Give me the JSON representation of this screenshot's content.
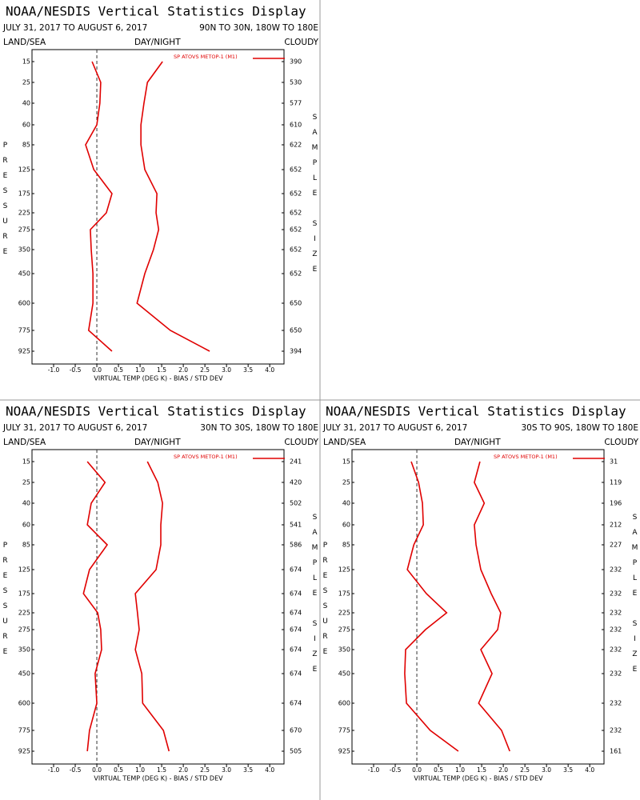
{
  "chart_data": [
    {
      "type": "line",
      "title": "NOAA/NESDIS Vertical Statistics Display",
      "subtitle": "JULY 31, 2017 TO AUGUST 6, 2017",
      "region": "90N TO 30N, 180W TO 180E",
      "header_left": "LAND/SEA",
      "header_center": "DAY/NIGHT",
      "header_right": "CLOUDY",
      "y_label": "PRESSURE",
      "y2_label": "SAMPLE SIZE",
      "x_label": "VIRTUAL TEMP (DEG K) - BIAS / STD DEV",
      "categories": [
        "15",
        "25",
        "40",
        "60",
        "85",
        "125",
        "175",
        "225",
        "275",
        "350",
        "450",
        "600",
        "775",
        "925"
      ],
      "sample_size": [
        390,
        530,
        577,
        610,
        622,
        652,
        652,
        652,
        652,
        652,
        652,
        650,
        650,
        394
      ],
      "series": [
        {
          "name": "SP ATOVS METOP-1 (M1)",
          "color": "#e00000",
          "values": [
            -0.11,
            0.09,
            0.07,
            0.0,
            -0.26,
            -0.07,
            0.35,
            0.22,
            -0.15,
            -0.13,
            -0.09,
            -0.09,
            -0.19,
            0.35
          ],
          "std_dev": [
            1.52,
            1.17,
            1.09,
            1.02,
            1.02,
            1.11,
            1.39,
            1.37,
            1.43,
            1.31,
            1.11,
            0.93,
            1.7,
            2.61
          ]
        }
      ],
      "xlim": [
        -1.5,
        4.33
      ],
      "xticks": [
        {
          "value": -1,
          "label": "-1.0"
        },
        {
          "value": -0.5,
          "label": "-0.5"
        },
        {
          "value": 0,
          "label": "0.0"
        },
        {
          "value": 0.5,
          "label": "0.5"
        },
        {
          "value": 1,
          "label": "1.0"
        },
        {
          "value": 1.5,
          "label": "1.5"
        },
        {
          "value": 2,
          "label": "2.0"
        },
        {
          "value": 2.5,
          "label": "2.5"
        },
        {
          "value": 3,
          "label": "3.0"
        },
        {
          "value": 3.5,
          "label": "3.5"
        },
        {
          "value": 4,
          "label": "4.0"
        }
      ]
    },
    {
      "type": "line",
      "title": "NOAA/NESDIS Vertical Statistics Display",
      "subtitle": "JULY 31, 2017 TO AUGUST 6, 2017",
      "region": "30N TO 30S, 180W TO 180E",
      "header_left": "LAND/SEA",
      "header_center": "DAY/NIGHT",
      "header_right": "CLOUDY",
      "y_label": "PRESSURE",
      "y2_label": "SAMPLE SIZE",
      "x_label": "VIRTUAL TEMP (DEG K) - BIAS / STD DEV",
      "categories": [
        "15",
        "25",
        "40",
        "60",
        "85",
        "125",
        "175",
        "225",
        "275",
        "350",
        "450",
        "600",
        "775",
        "925"
      ],
      "sample_size": [
        241,
        420,
        502,
        541,
        586,
        674,
        674,
        674,
        674,
        674,
        674,
        674,
        670,
        505
      ],
      "series": [
        {
          "name": "SP ATOVS METOP-1 (M1)",
          "color": "#e00000",
          "values": [
            -0.22,
            0.19,
            -0.13,
            -0.22,
            0.24,
            -0.17,
            -0.31,
            0.02,
            0.09,
            0.11,
            -0.04,
            0.0,
            -0.17,
            -0.22
          ],
          "std_dev": [
            1.17,
            1.41,
            1.52,
            1.48,
            1.48,
            1.37,
            0.89,
            0.94,
            0.98,
            0.89,
            1.04,
            1.06,
            1.54,
            1.67
          ]
        }
      ],
      "xlim": [
        -1.5,
        4.33
      ],
      "xticks": [
        {
          "value": -1,
          "label": "-1.0"
        },
        {
          "value": -0.5,
          "label": "-0.5"
        },
        {
          "value": 0,
          "label": "0.0"
        },
        {
          "value": 0.5,
          "label": "0.5"
        },
        {
          "value": 1,
          "label": "1.0"
        },
        {
          "value": 1.5,
          "label": "1.5"
        },
        {
          "value": 2,
          "label": "2.0"
        },
        {
          "value": 2.5,
          "label": "2.5"
        },
        {
          "value": 3,
          "label": "3.0"
        },
        {
          "value": 3.5,
          "label": "3.5"
        },
        {
          "value": 4,
          "label": "4.0"
        }
      ]
    },
    {
      "type": "line",
      "title": "NOAA/NESDIS Vertical Statistics Display",
      "subtitle": "JULY 31, 2017 TO AUGUST 6, 2017",
      "region": "30S TO 90S, 180W TO 180E",
      "header_left": "LAND/SEA",
      "header_center": "DAY/NIGHT",
      "header_right": "CLOUDY",
      "y_label": "PRESSURE",
      "y2_label": "SAMPLE SIZE",
      "x_label": "VIRTUAL TEMP (DEG K) - BIAS / STD DEV",
      "categories": [
        "15",
        "25",
        "40",
        "60",
        "85",
        "125",
        "175",
        "225",
        "275",
        "350",
        "450",
        "600",
        "775",
        "925"
      ],
      "sample_size": [
        31,
        119,
        196,
        212,
        227,
        232,
        232,
        232,
        232,
        232,
        232,
        232,
        232,
        161
      ],
      "series": [
        {
          "name": "SP ATOVS METOP-1 (M1)",
          "color": "#e00000",
          "values": [
            -0.13,
            0.04,
            0.13,
            0.15,
            -0.07,
            -0.22,
            0.22,
            0.69,
            0.2,
            -0.26,
            -0.28,
            -0.24,
            0.31,
            0.96
          ],
          "std_dev": [
            1.46,
            1.33,
            1.56,
            1.33,
            1.37,
            1.48,
            1.72,
            1.94,
            1.87,
            1.48,
            1.74,
            1.43,
            1.96,
            2.15
          ]
        }
      ],
      "xlim": [
        -1.5,
        4.33
      ],
      "xticks": [
        {
          "value": -1,
          "label": "-1.0"
        },
        {
          "value": -0.5,
          "label": "-0.5"
        },
        {
          "value": 0,
          "label": "0.0"
        },
        {
          "value": 0.5,
          "label": "0.5"
        },
        {
          "value": 1,
          "label": "1.0"
        },
        {
          "value": 1.5,
          "label": "1.5"
        },
        {
          "value": 2,
          "label": "2.0"
        },
        {
          "value": 2.5,
          "label": "2.5"
        },
        {
          "value": 3,
          "label": "3.0"
        },
        {
          "value": 3.5,
          "label": "3.5"
        },
        {
          "value": 4,
          "label": "4.0"
        }
      ]
    }
  ]
}
